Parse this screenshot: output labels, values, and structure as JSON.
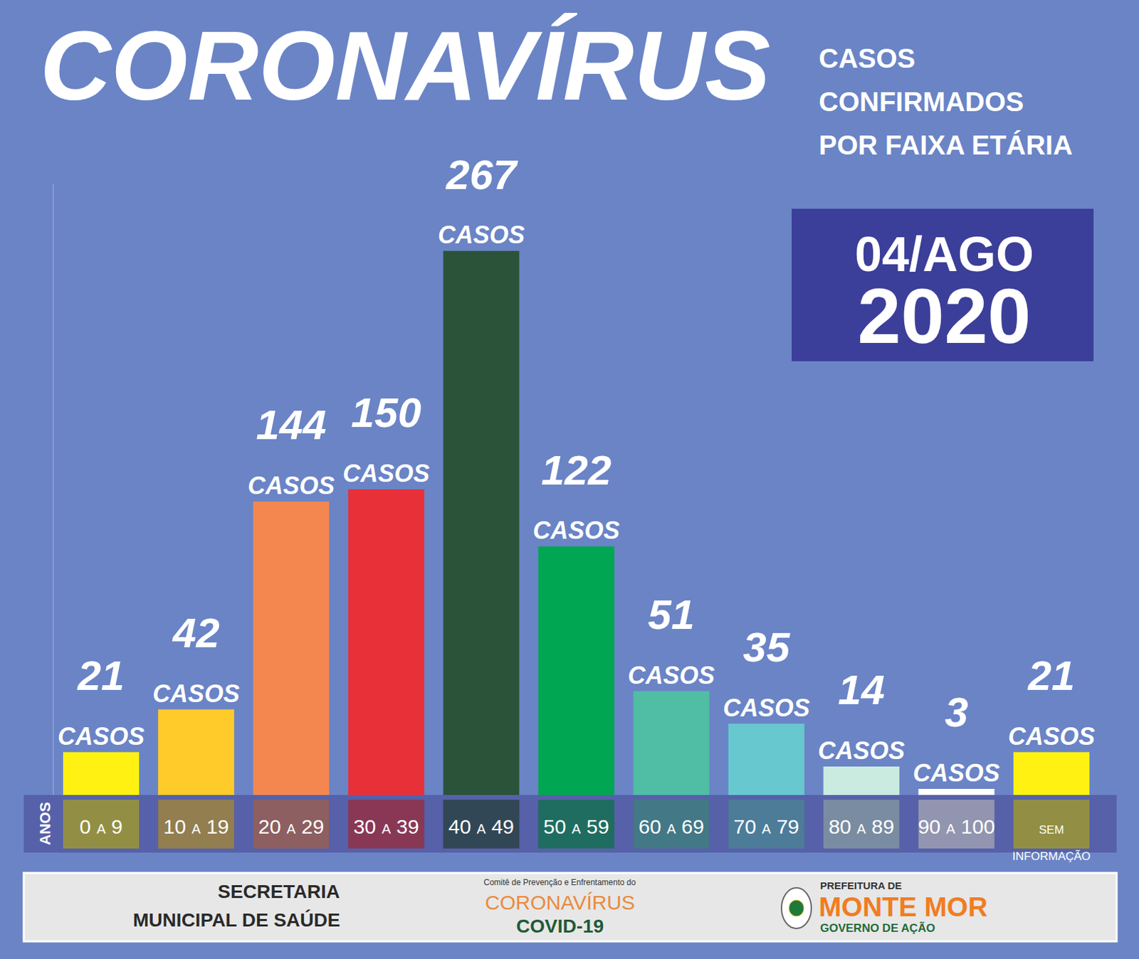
{
  "chart_data": {
    "type": "bar",
    "title": "CORONAVÍRUS",
    "subtitle": [
      "CASOS",
      "CONFIRMADOS",
      "POR FAIXA ETÁRIA"
    ],
    "xlabel": "ANOS",
    "categories": [
      "0 A 9",
      "10 A 19",
      "20 A 29",
      "30 A 39",
      "40 A 49",
      "50 A 59",
      "60 A 69",
      "70 A 79",
      "80 A 89",
      "90 A 100",
      "SEM INFORMAÇÃO"
    ],
    "values": [
      21,
      42,
      144,
      150,
      267,
      122,
      51,
      35,
      14,
      3,
      21
    ],
    "value_labels": [
      "21 CASOS",
      "42 CASOS",
      "144 CASOS",
      "150 CASOS",
      "267 CASOS",
      "122 CASOS",
      "51 CASOS",
      "35 CASOS",
      "14 CASOS",
      "3 CASOS",
      "21 CASOS"
    ],
    "colors": [
      "#fff212",
      "#ffcb2b",
      "#f4874f",
      "#e83038",
      "#2b533a",
      "#00a651",
      "#4fbea4",
      "#67c8cf",
      "#c9ebe0",
      "#ffffff",
      "#fff212"
    ],
    "ylim": [
      0,
      300
    ],
    "yticks": [],
    "grid": false,
    "data_labels": true,
    "tick_labels": "x",
    "annotations": [
      "04/AGO",
      "2020",
      "SECRETARIA",
      "MUNICIPAL DE SAÚDE",
      "Comitê de Prevenção e Enfrentamento do",
      "CORONAVÍRUS",
      "COVID-19",
      "PREFEITURA DE",
      "MONTE MOR",
      "GOVERNO DE AÇÃO"
    ]
  }
}
